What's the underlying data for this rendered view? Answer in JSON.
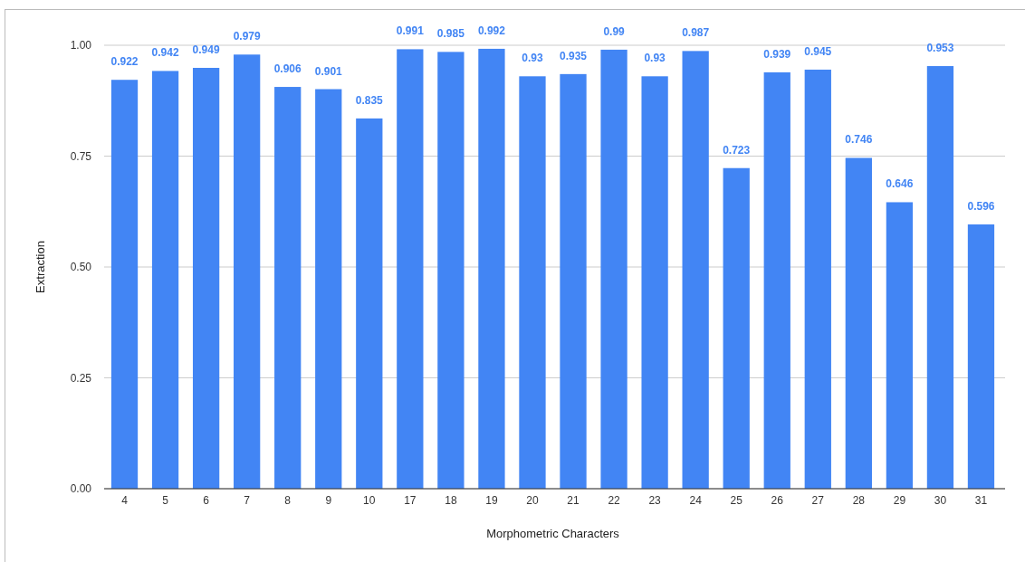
{
  "chart_data": {
    "type": "bar",
    "xlabel": "Morphometric Characters",
    "ylabel": "Extraction",
    "categories": [
      "4",
      "5",
      "6",
      "7",
      "8",
      "9",
      "10",
      "17",
      "18",
      "19",
      "20",
      "21",
      "22",
      "23",
      "24",
      "25",
      "26",
      "27",
      "28",
      "29",
      "30",
      "31"
    ],
    "values": [
      0.922,
      0.942,
      0.949,
      0.979,
      0.906,
      0.901,
      0.835,
      0.991,
      0.985,
      0.992,
      0.93,
      0.935,
      0.99,
      0.93,
      0.987,
      0.723,
      0.939,
      0.945,
      0.746,
      0.646,
      0.953,
      0.596
    ],
    "color": "#4285f4",
    "ylim": [
      0,
      1
    ],
    "yticks": [
      {
        "value": 0,
        "label": "0.00"
      },
      {
        "value": 0.25,
        "label": "0.25"
      },
      {
        "value": 0.5,
        "label": "0.50"
      },
      {
        "value": 0.75,
        "label": "0.75"
      },
      {
        "value": 1,
        "label": "1.00"
      }
    ],
    "grid": "y",
    "data_labels": true
  }
}
